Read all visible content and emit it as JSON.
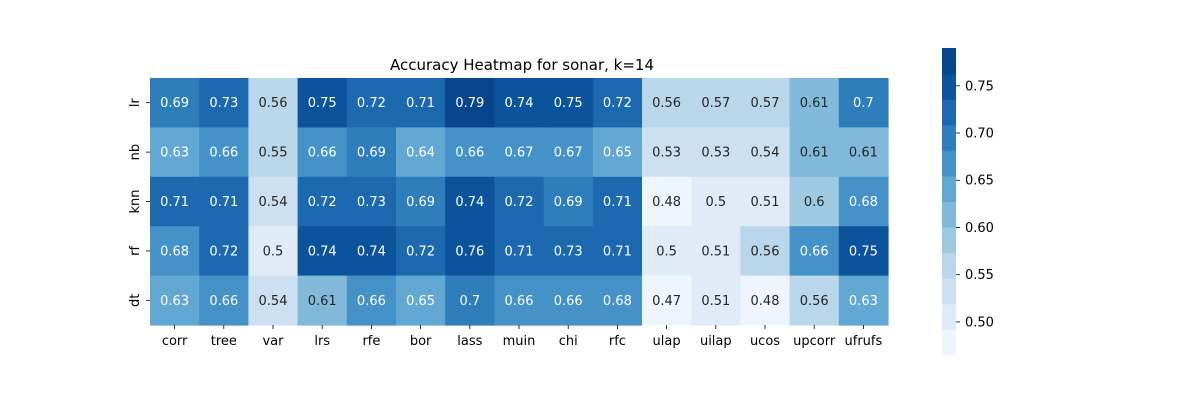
{
  "chart_data": {
    "type": "heatmap",
    "title": "Accuracy Heatmap for sonar, k=14",
    "xlabel": "",
    "ylabel": "",
    "columns": [
      "corr",
      "tree",
      "var",
      "lrs",
      "rfe",
      "bor",
      "lass",
      "muin",
      "chi",
      "rfc",
      "ulap",
      "uilap",
      "ucos",
      "upcorr",
      "ufrufs"
    ],
    "rows": [
      "lr",
      "nb",
      "knn",
      "rf",
      "dt"
    ],
    "values": [
      [
        0.69,
        0.73,
        0.56,
        0.75,
        0.72,
        0.71,
        0.79,
        0.74,
        0.75,
        0.72,
        0.56,
        0.57,
        0.57,
        0.61,
        0.7
      ],
      [
        0.63,
        0.66,
        0.55,
        0.66,
        0.69,
        0.64,
        0.66,
        0.67,
        0.67,
        0.65,
        0.53,
        0.53,
        0.54,
        0.61,
        0.61
      ],
      [
        0.71,
        0.71,
        0.54,
        0.72,
        0.73,
        0.69,
        0.74,
        0.72,
        0.69,
        0.71,
        0.48,
        0.5,
        0.51,
        0.6,
        0.68
      ],
      [
        0.68,
        0.72,
        0.5,
        0.74,
        0.74,
        0.72,
        0.76,
        0.71,
        0.73,
        0.71,
        0.5,
        0.51,
        0.56,
        0.66,
        0.75
      ],
      [
        0.63,
        0.66,
        0.54,
        0.61,
        0.66,
        0.65,
        0.7,
        0.66,
        0.66,
        0.68,
        0.47,
        0.51,
        0.48,
        0.56,
        0.63
      ]
    ],
    "colorbar": {
      "vmin": 0.465,
      "vmax": 0.79,
      "ticks": [
        0.5,
        0.55,
        0.6,
        0.65,
        0.7,
        0.75
      ],
      "tick_labels": [
        "0.50",
        "0.55",
        "0.60",
        "0.65",
        "0.70",
        "0.75"
      ],
      "palette": [
        "#eff5fc",
        "#dfecf7",
        "#cde0f2",
        "#bad6eb",
        "#9ecae1",
        "#81b9db",
        "#62a8d3",
        "#4492c7",
        "#2f7ebc",
        "#1c69b0",
        "#0b539a",
        "#08458a"
      ]
    },
    "text_color_dark": "#262626",
    "text_color_light": "#ffffff"
  }
}
